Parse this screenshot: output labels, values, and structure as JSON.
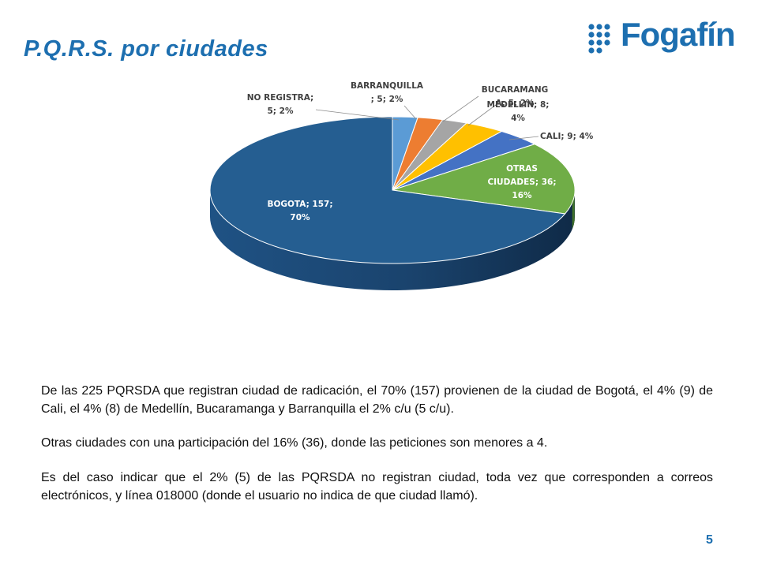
{
  "slide": {
    "title": "P.Q.R.S. por ciudades",
    "brand": "Fogafín",
    "page_number": "5"
  },
  "colors": {
    "title": "#1d6fb0",
    "bogota": "#255e91",
    "otras": "#70ad47",
    "cali": "#4472c4",
    "medellin": "#ffc000",
    "bucaramanga": "#a5a5a5",
    "barranquilla": "#ed7d31",
    "no_registra": "#5b9bd5"
  },
  "chart_data": {
    "type": "pie",
    "three_d": true,
    "slices": [
      {
        "name": "NO REGISTRA",
        "value": 5,
        "percent": 2,
        "label_lines": [
          "NO REGISTRA;",
          "5; 2%"
        ]
      },
      {
        "name": "BARRANQUILLA",
        "value": 5,
        "percent": 2,
        "label_lines": [
          "BARRANQUILLA",
          "; 5; 2%"
        ]
      },
      {
        "name": "BUCARAMANGA",
        "value": 5,
        "percent": 2,
        "label_lines": [
          "BUCARAMANG",
          "A; 5; 2%"
        ]
      },
      {
        "name": "MEDELLIN",
        "value": 8,
        "percent": 4,
        "label_lines": [
          "MEDELLIN; 8;",
          "4%"
        ]
      },
      {
        "name": "CALI",
        "value": 9,
        "percent": 4,
        "label_lines": [
          "CALI; 9; 4%"
        ]
      },
      {
        "name": "OTRAS CIUDADES",
        "value": 36,
        "percent": 16,
        "label_lines": [
          "OTRAS",
          "CIUDADES; 36;",
          "16%"
        ]
      },
      {
        "name": "BOGOTA",
        "value": 157,
        "percent": 70,
        "label_lines": [
          "BOGOTA; 157;",
          "70%"
        ]
      }
    ]
  },
  "text": {
    "p1": "De las 225 PQRSDA que registran ciudad de radicación, el 70% (157) provienen de la ciudad de Bogotá,  el 4% (9) de Cali, el 4% (8) de Medellín, Bucaramanga y Barranquilla el 2% c/u (5 c/u).",
    "p2": "Otras ciudades con una participación del 16% (36), donde las peticiones son menores a 4.",
    "p3": "Es del caso indicar que el 2% (5) de las PQRSDA no registran ciudad, toda vez que corresponden a correos electrónicos, y línea 018000 (donde el usuario no indica de que ciudad llamó)."
  }
}
